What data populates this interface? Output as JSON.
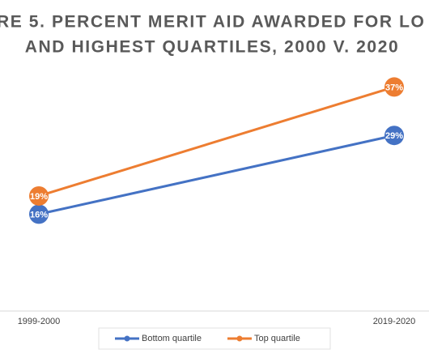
{
  "chart_data": {
    "type": "line",
    "title": [
      "RE 5. PERCENT MERIT AID AWARDED FOR LO",
      "AND HIGHEST QUARTILES, 2000 V. 2020"
    ],
    "categories": [
      "1999-2000",
      "2019-2020"
    ],
    "series": [
      {
        "name": "Bottom quartile",
        "color": "#4472c4",
        "values": [
          16,
          29
        ],
        "value_labels": [
          "16%",
          "29%"
        ]
      },
      {
        "name": "Top quartile",
        "color": "#ed7d31",
        "values": [
          19,
          37
        ],
        "value_labels": [
          "19%",
          "37%"
        ]
      }
    ],
    "ylim": [
      0,
      40
    ]
  }
}
